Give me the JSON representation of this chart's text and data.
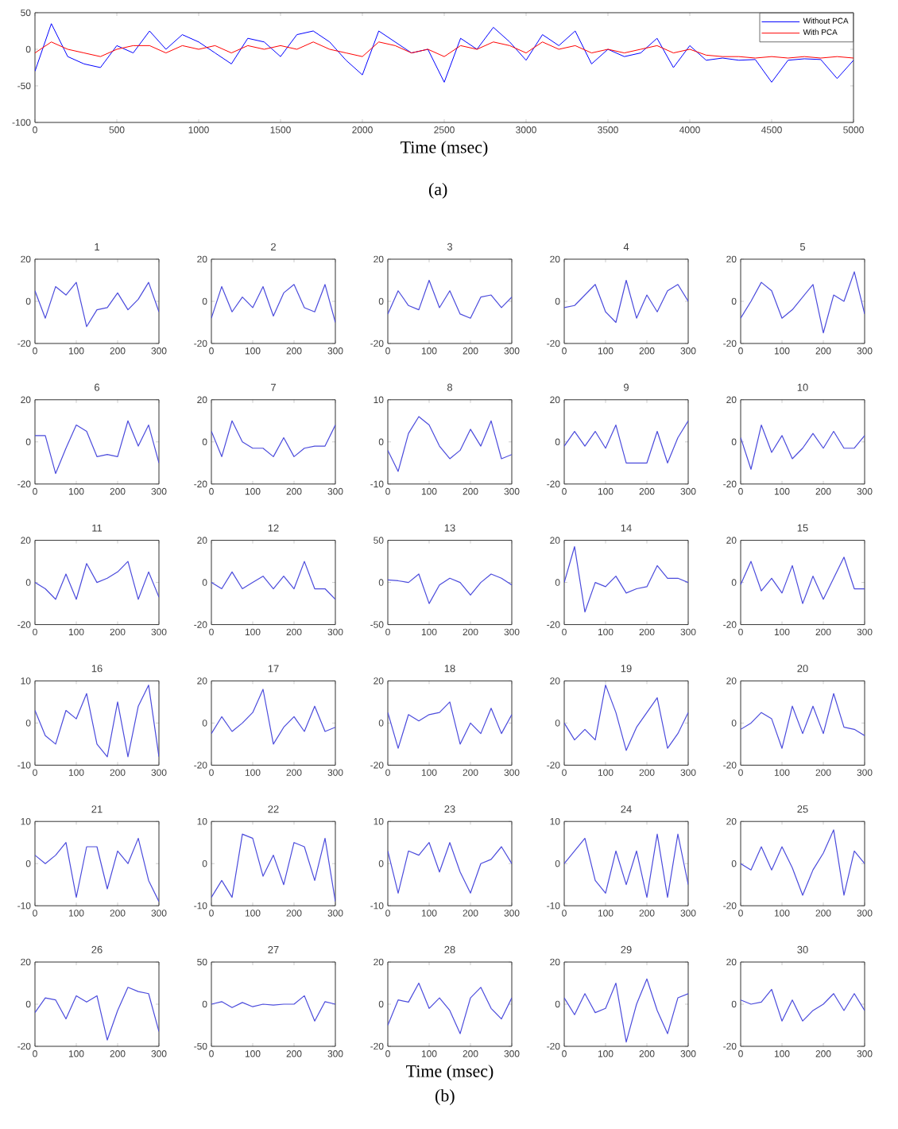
{
  "chart_data": [
    {
      "type": "line",
      "xlabel": "Time (msec)",
      "annotations": [
        "(a)"
      ],
      "x": [
        0,
        100,
        200,
        300,
        400,
        500,
        600,
        700,
        800,
        900,
        1000,
        1100,
        1200,
        1300,
        1400,
        1500,
        1600,
        1700,
        1800,
        1900,
        2000,
        2100,
        2200,
        2300,
        2400,
        2500,
        2600,
        2700,
        2800,
        2900,
        3000,
        3100,
        3200,
        3300,
        3400,
        3500,
        3600,
        3700,
        3800,
        3900,
        4000,
        4100,
        4200,
        4300,
        4400,
        4500,
        4600,
        4700,
        4800,
        4900,
        5000
      ],
      "xlim": [
        0,
        5000
      ],
      "xticks": [
        0,
        500,
        1000,
        1500,
        2000,
        2500,
        3000,
        3500,
        4000,
        4500,
        5000
      ],
      "ylim": [
        -100,
        50
      ],
      "yticks": [
        -100,
        -50,
        0,
        50
      ],
      "legend": "top right",
      "series": [
        {
          "name": "Without PCA",
          "color": "#0000ff",
          "values": [
            -30,
            35,
            -10,
            -20,
            -25,
            5,
            -5,
            25,
            0,
            20,
            10,
            -5,
            -20,
            15,
            10,
            -10,
            20,
            25,
            10,
            -15,
            -35,
            25,
            10,
            -5,
            0,
            -45,
            15,
            0,
            30,
            10,
            -15,
            20,
            5,
            25,
            -20,
            0,
            -10,
            -5,
            15,
            -25,
            5,
            -15,
            -12,
            -15,
            -14,
            -45,
            -15,
            -13,
            -14,
            -40,
            -15
          ]
        },
        {
          "name": "With PCA",
          "color": "#ff0000",
          "values": [
            -5,
            10,
            0,
            -5,
            -10,
            0,
            5,
            5,
            -5,
            5,
            0,
            5,
            -5,
            5,
            0,
            5,
            0,
            10,
            0,
            -5,
            -10,
            10,
            5,
            -5,
            0,
            -10,
            5,
            0,
            10,
            5,
            -5,
            10,
            0,
            5,
            -5,
            0,
            -5,
            0,
            5,
            -5,
            0,
            -8,
            -10,
            -10,
            -12,
            -10,
            -12,
            -10,
            -12,
            -10,
            -12
          ]
        }
      ]
    },
    {
      "type": "line",
      "title": "1",
      "color": "#4b4bdc",
      "x": [
        0,
        25,
        50,
        75,
        100,
        125,
        150,
        175,
        200,
        225,
        250,
        275,
        300
      ],
      "xlim": [
        0,
        300
      ],
      "xticks": [
        0,
        100,
        200,
        300
      ],
      "ylim": [
        -20,
        20
      ],
      "yticks": [
        -20,
        0,
        20
      ],
      "values": [
        5,
        -8,
        7,
        3,
        9,
        -12,
        -4,
        -3,
        4,
        -4,
        1,
        9,
        -5
      ]
    },
    {
      "type": "line",
      "title": "2",
      "color": "#4b4bdc",
      "x": [
        0,
        25,
        50,
        75,
        100,
        125,
        150,
        175,
        200,
        225,
        250,
        275,
        300
      ],
      "xlim": [
        0,
        300
      ],
      "xticks": [
        0,
        100,
        200,
        300
      ],
      "ylim": [
        -20,
        20
      ],
      "yticks": [
        -20,
        0,
        20
      ],
      "values": [
        -8,
        7,
        -5,
        2,
        -3,
        7,
        -7,
        4,
        8,
        -3,
        -5,
        8,
        -10
      ]
    },
    {
      "type": "line",
      "title": "3",
      "color": "#4b4bdc",
      "x": [
        0,
        25,
        50,
        75,
        100,
        125,
        150,
        175,
        200,
        225,
        250,
        275,
        300
      ],
      "xlim": [
        0,
        300
      ],
      "xticks": [
        0,
        100,
        200,
        300
      ],
      "ylim": [
        -20,
        20
      ],
      "yticks": [
        -20,
        0,
        20
      ],
      "values": [
        -6,
        5,
        -2,
        -4,
        10,
        -3,
        5,
        -6,
        -8,
        2,
        3,
        -3,
        2
      ]
    },
    {
      "type": "line",
      "title": "4",
      "color": "#4b4bdc",
      "x": [
        0,
        25,
        50,
        75,
        100,
        125,
        150,
        175,
        200,
        225,
        250,
        275,
        300
      ],
      "xlim": [
        0,
        300
      ],
      "xticks": [
        0,
        100,
        200,
        300
      ],
      "ylim": [
        -20,
        20
      ],
      "yticks": [
        -20,
        0,
        20
      ],
      "values": [
        -3,
        -2,
        3,
        8,
        -5,
        -10,
        10,
        -8,
        3,
        -5,
        5,
        8,
        0
      ]
    },
    {
      "type": "line",
      "title": "5",
      "color": "#4b4bdc",
      "x": [
        0,
        25,
        50,
        75,
        100,
        125,
        150,
        175,
        200,
        225,
        250,
        275,
        300
      ],
      "xlim": [
        0,
        300
      ],
      "xticks": [
        0,
        100,
        200,
        300
      ],
      "ylim": [
        -20,
        20
      ],
      "yticks": [
        -20,
        0,
        20
      ],
      "values": [
        -8,
        0,
        9,
        5,
        -8,
        -4,
        2,
        8,
        -15,
        3,
        0,
        14,
        -6
      ]
    },
    {
      "type": "line",
      "title": "6",
      "color": "#4b4bdc",
      "x": [
        0,
        25,
        50,
        75,
        100,
        125,
        150,
        175,
        200,
        225,
        250,
        275,
        300
      ],
      "xlim": [
        0,
        300
      ],
      "xticks": [
        0,
        100,
        200,
        300
      ],
      "ylim": [
        -20,
        20
      ],
      "yticks": [
        -20,
        0,
        20
      ],
      "values": [
        3,
        3,
        -15,
        -3,
        8,
        5,
        -7,
        -6,
        -7,
        10,
        -2,
        8,
        -10
      ]
    },
    {
      "type": "line",
      "title": "7",
      "color": "#4b4bdc",
      "x": [
        0,
        25,
        50,
        75,
        100,
        125,
        150,
        175,
        200,
        225,
        250,
        275,
        300
      ],
      "xlim": [
        0,
        300
      ],
      "xticks": [
        0,
        100,
        200,
        300
      ],
      "ylim": [
        -20,
        20
      ],
      "yticks": [
        -20,
        0,
        20
      ],
      "values": [
        5,
        -7,
        10,
        0,
        -3,
        -3,
        -7,
        2,
        -7,
        -3,
        -2,
        -2,
        8
      ]
    },
    {
      "type": "line",
      "title": "8",
      "color": "#4b4bdc",
      "x": [
        0,
        25,
        50,
        75,
        100,
        125,
        150,
        175,
        200,
        225,
        250,
        275,
        300
      ],
      "xlim": [
        0,
        300
      ],
      "xticks": [
        0,
        100,
        200,
        300
      ],
      "ylim": [
        -10,
        10
      ],
      "yticks": [
        -10,
        0,
        10
      ],
      "values": [
        -2,
        -7,
        2,
        6,
        4,
        -1,
        -4,
        -2,
        3,
        -1,
        5,
        -4,
        -3
      ]
    },
    {
      "type": "line",
      "title": "9",
      "color": "#4b4bdc",
      "x": [
        0,
        25,
        50,
        75,
        100,
        125,
        150,
        175,
        200,
        225,
        250,
        275,
        300
      ],
      "xlim": [
        0,
        300
      ],
      "xticks": [
        0,
        100,
        200,
        300
      ],
      "ylim": [
        -20,
        20
      ],
      "yticks": [
        -20,
        0,
        20
      ],
      "values": [
        -2,
        5,
        -2,
        5,
        -3,
        8,
        -10,
        -10,
        -10,
        5,
        -10,
        2,
        10
      ]
    },
    {
      "type": "line",
      "title": "10",
      "color": "#4b4bdc",
      "x": [
        0,
        25,
        50,
        75,
        100,
        125,
        150,
        175,
        200,
        225,
        250,
        275,
        300
      ],
      "xlim": [
        0,
        300
      ],
      "xticks": [
        0,
        100,
        200,
        300
      ],
      "ylim": [
        -20,
        20
      ],
      "yticks": [
        -20,
        0,
        20
      ],
      "values": [
        2,
        -13,
        8,
        -5,
        3,
        -8,
        -3,
        4,
        -3,
        5,
        -3,
        -3,
        3
      ]
    },
    {
      "type": "line",
      "title": "11",
      "color": "#4b4bdc",
      "x": [
        0,
        25,
        50,
        75,
        100,
        125,
        150,
        175,
        200,
        225,
        250,
        275,
        300
      ],
      "xlim": [
        0,
        300
      ],
      "xticks": [
        0,
        100,
        200,
        300
      ],
      "ylim": [
        -20,
        20
      ],
      "yticks": [
        -20,
        0,
        20
      ],
      "values": [
        0,
        -3,
        -8,
        4,
        -8,
        9,
        0,
        2,
        5,
        10,
        -8,
        5,
        -7
      ]
    },
    {
      "type": "line",
      "title": "12",
      "color": "#4b4bdc",
      "x": [
        0,
        25,
        50,
        75,
        100,
        125,
        150,
        175,
        200,
        225,
        250,
        275,
        300
      ],
      "xlim": [
        0,
        300
      ],
      "xticks": [
        0,
        100,
        200,
        300
      ],
      "ylim": [
        -20,
        20
      ],
      "yticks": [
        -20,
        0,
        20
      ],
      "values": [
        0,
        -3,
        5,
        -3,
        0,
        3,
        -3,
        3,
        -3,
        10,
        -3,
        -3,
        -8
      ]
    },
    {
      "type": "line",
      "title": "13",
      "color": "#4b4bdc",
      "x": [
        0,
        25,
        50,
        75,
        100,
        125,
        150,
        175,
        200,
        225,
        250,
        275,
        300
      ],
      "xlim": [
        0,
        300
      ],
      "xticks": [
        0,
        100,
        200,
        300
      ],
      "ylim": [
        -50,
        50
      ],
      "yticks": [
        -50,
        0,
        50
      ],
      "values": [
        3,
        2,
        0,
        10,
        -25,
        -3,
        5,
        0,
        -15,
        0,
        10,
        5,
        -3
      ]
    },
    {
      "type": "line",
      "title": "14",
      "color": "#4b4bdc",
      "x": [
        0,
        25,
        50,
        75,
        100,
        125,
        150,
        175,
        200,
        225,
        250,
        275,
        300
      ],
      "xlim": [
        0,
        300
      ],
      "xticks": [
        0,
        100,
        200,
        300
      ],
      "ylim": [
        -20,
        20
      ],
      "yticks": [
        -20,
        0,
        20
      ],
      "values": [
        0,
        17,
        -14,
        0,
        -2,
        3,
        -5,
        -3,
        -2,
        8,
        2,
        2,
        0
      ]
    },
    {
      "type": "line",
      "title": "15",
      "color": "#4b4bdc",
      "x": [
        0,
        25,
        50,
        75,
        100,
        125,
        150,
        175,
        200,
        225,
        250,
        275,
        300
      ],
      "xlim": [
        0,
        300
      ],
      "xticks": [
        0,
        100,
        200,
        300
      ],
      "ylim": [
        -20,
        20
      ],
      "yticks": [
        -20,
        0,
        20
      ],
      "values": [
        -1,
        10,
        -4,
        2,
        -5,
        8,
        -10,
        3,
        -8,
        2,
        12,
        -3,
        -3
      ]
    },
    {
      "type": "line",
      "title": "16",
      "color": "#4b4bdc",
      "x": [
        0,
        25,
        50,
        75,
        100,
        125,
        150,
        175,
        200,
        225,
        250,
        275,
        300
      ],
      "xlim": [
        0,
        300
      ],
      "xticks": [
        0,
        100,
        200,
        300
      ],
      "ylim": [
        -10,
        10
      ],
      "yticks": [
        -10,
        0,
        10
      ],
      "values": [
        3,
        -3,
        -5,
        3,
        1,
        7,
        -5,
        -8,
        5,
        -8,
        4,
        9,
        -8
      ]
    },
    {
      "type": "line",
      "title": "17",
      "color": "#4b4bdc",
      "x": [
        0,
        25,
        50,
        75,
        100,
        125,
        150,
        175,
        200,
        225,
        250,
        275,
        300
      ],
      "xlim": [
        0,
        300
      ],
      "xticks": [
        0,
        100,
        200,
        300
      ],
      "ylim": [
        -20,
        20
      ],
      "yticks": [
        -20,
        0,
        20
      ],
      "values": [
        -5,
        3,
        -4,
        0,
        5,
        16,
        -10,
        -2,
        3,
        -4,
        8,
        -4,
        -2
      ]
    },
    {
      "type": "line",
      "title": "18",
      "color": "#4b4bdc",
      "x": [
        0,
        25,
        50,
        75,
        100,
        125,
        150,
        175,
        200,
        225,
        250,
        275,
        300
      ],
      "xlim": [
        0,
        300
      ],
      "xticks": [
        0,
        100,
        200,
        300
      ],
      "ylim": [
        -20,
        20
      ],
      "yticks": [
        -20,
        0,
        20
      ],
      "values": [
        5,
        -12,
        4,
        1,
        4,
        5,
        10,
        -10,
        0,
        -5,
        7,
        -5,
        4
      ]
    },
    {
      "type": "line",
      "title": "19",
      "color": "#4b4bdc",
      "x": [
        0,
        25,
        50,
        75,
        100,
        125,
        150,
        175,
        200,
        225,
        250,
        275,
        300
      ],
      "xlim": [
        0,
        300
      ],
      "xticks": [
        0,
        100,
        200,
        300
      ],
      "ylim": [
        -20,
        20
      ],
      "yticks": [
        -20,
        0,
        20
      ],
      "values": [
        0,
        -8,
        -3,
        -8,
        18,
        5,
        -13,
        -2,
        5,
        12,
        -12,
        -5,
        5
      ]
    },
    {
      "type": "line",
      "title": "20",
      "color": "#4b4bdc",
      "x": [
        0,
        25,
        50,
        75,
        100,
        125,
        150,
        175,
        200,
        225,
        250,
        275,
        300
      ],
      "xlim": [
        0,
        300
      ],
      "xticks": [
        0,
        100,
        200,
        300
      ],
      "ylim": [
        -20,
        20
      ],
      "yticks": [
        -20,
        0,
        20
      ],
      "values": [
        -3,
        0,
        5,
        2,
        -12,
        8,
        -5,
        8,
        -5,
        14,
        -2,
        -3,
        -6
      ]
    },
    {
      "type": "line",
      "title": "21",
      "color": "#4b4bdc",
      "x": [
        0,
        25,
        50,
        75,
        100,
        125,
        150,
        175,
        200,
        225,
        250,
        275,
        300
      ],
      "xlim": [
        0,
        300
      ],
      "xticks": [
        0,
        100,
        200,
        300
      ],
      "ylim": [
        -10,
        10
      ],
      "yticks": [
        -10,
        0,
        10
      ],
      "values": [
        2,
        0,
        2,
        5,
        -8,
        4,
        4,
        -6,
        3,
        0,
        6,
        -4,
        -9
      ]
    },
    {
      "type": "line",
      "title": "22",
      "color": "#4b4bdc",
      "x": [
        0,
        25,
        50,
        75,
        100,
        125,
        150,
        175,
        200,
        225,
        250,
        275,
        300
      ],
      "xlim": [
        0,
        300
      ],
      "xticks": [
        0,
        100,
        200,
        300
      ],
      "ylim": [
        -10,
        10
      ],
      "yticks": [
        -10,
        0,
        10
      ],
      "values": [
        -8,
        -4,
        -8,
        7,
        6,
        -3,
        2,
        -5,
        5,
        4,
        -4,
        6,
        -9
      ]
    },
    {
      "type": "line",
      "title": "23",
      "color": "#4b4bdc",
      "x": [
        0,
        25,
        50,
        75,
        100,
        125,
        150,
        175,
        200,
        225,
        250,
        275,
        300
      ],
      "xlim": [
        0,
        300
      ],
      "xticks": [
        0,
        100,
        200,
        300
      ],
      "ylim": [
        -10,
        10
      ],
      "yticks": [
        -10,
        0,
        10
      ],
      "values": [
        3,
        -7,
        3,
        2,
        5,
        -2,
        5,
        -2,
        -7,
        0,
        1,
        4,
        0
      ]
    },
    {
      "type": "line",
      "title": "24",
      "color": "#4b4bdc",
      "x": [
        0,
        25,
        50,
        75,
        100,
        125,
        150,
        175,
        200,
        225,
        250,
        275,
        300
      ],
      "xlim": [
        0,
        300
      ],
      "xticks": [
        0,
        100,
        200,
        300
      ],
      "ylim": [
        -10,
        10
      ],
      "yticks": [
        -10,
        0,
        10
      ],
      "values": [
        0,
        3,
        6,
        -4,
        -7,
        3,
        -5,
        3,
        -8,
        7,
        -8,
        7,
        -5
      ]
    },
    {
      "type": "line",
      "title": "25",
      "color": "#4b4bdc",
      "x": [
        0,
        25,
        50,
        75,
        100,
        125,
        150,
        175,
        200,
        225,
        250,
        275,
        300
      ],
      "xlim": [
        0,
        300
      ],
      "xticks": [
        0,
        100,
        200,
        300
      ],
      "ylim": [
        -20,
        20
      ],
      "yticks": [
        -20,
        0,
        20
      ],
      "values": [
        0,
        -3,
        8,
        -3,
        8,
        -2,
        -15,
        -3,
        5,
        16,
        -15,
        6,
        0
      ]
    },
    {
      "type": "line",
      "title": "26",
      "color": "#4b4bdc",
      "x": [
        0,
        25,
        50,
        75,
        100,
        125,
        150,
        175,
        200,
        225,
        250,
        275,
        300
      ],
      "xlim": [
        0,
        300
      ],
      "xticks": [
        0,
        100,
        200,
        300
      ],
      "ylim": [
        -20,
        20
      ],
      "yticks": [
        -20,
        0,
        20
      ],
      "values": [
        -4,
        3,
        2,
        -7,
        4,
        1,
        4,
        -17,
        -3,
        8,
        6,
        5,
        -13
      ]
    },
    {
      "type": "line",
      "title": "27",
      "color": "#4b4bdc",
      "x": [
        0,
        25,
        50,
        75,
        100,
        125,
        150,
        175,
        200,
        225,
        250,
        275,
        300
      ],
      "xlim": [
        0,
        300
      ],
      "xticks": [
        0,
        100,
        200,
        300
      ],
      "ylim": [
        -50,
        50
      ],
      "yticks": [
        -50,
        0,
        50
      ],
      "values": [
        0,
        3,
        -4,
        2,
        -3,
        0,
        -1,
        0,
        0,
        10,
        -20,
        3,
        0
      ]
    },
    {
      "type": "line",
      "title": "28",
      "xlabel": "Time (msec)",
      "annotations": [
        "(b)"
      ],
      "color": "#4b4bdc",
      "x": [
        0,
        25,
        50,
        75,
        100,
        125,
        150,
        175,
        200,
        225,
        250,
        275,
        300
      ],
      "xlim": [
        0,
        300
      ],
      "xticks": [
        0,
        100,
        200,
        300
      ],
      "ylim": [
        -20,
        20
      ],
      "yticks": [
        -20,
        0,
        20
      ],
      "values": [
        -10,
        2,
        1,
        10,
        -2,
        3,
        -3,
        -14,
        3,
        8,
        -2,
        -7,
        3
      ]
    },
    {
      "type": "line",
      "title": "29",
      "color": "#4b4bdc",
      "x": [
        0,
        25,
        50,
        75,
        100,
        125,
        150,
        175,
        200,
        225,
        250,
        275,
        300
      ],
      "xlim": [
        0,
        300
      ],
      "xticks": [
        0,
        100,
        200,
        300
      ],
      "ylim": [
        -20,
        20
      ],
      "yticks": [
        -20,
        0,
        20
      ],
      "values": [
        3,
        -5,
        5,
        -4,
        -2,
        10,
        -18,
        0,
        12,
        -3,
        -14,
        3,
        5
      ]
    },
    {
      "type": "line",
      "title": "30",
      "color": "#4b4bdc",
      "x": [
        0,
        25,
        50,
        75,
        100,
        125,
        150,
        175,
        200,
        225,
        250,
        275,
        300
      ],
      "xlim": [
        0,
        300
      ],
      "xticks": [
        0,
        100,
        200,
        300
      ],
      "ylim": [
        -20,
        20
      ],
      "yticks": [
        -20,
        0,
        20
      ],
      "values": [
        2,
        0,
        1,
        7,
        -8,
        2,
        -8,
        -3,
        0,
        5,
        -3,
        5,
        -3
      ]
    }
  ]
}
